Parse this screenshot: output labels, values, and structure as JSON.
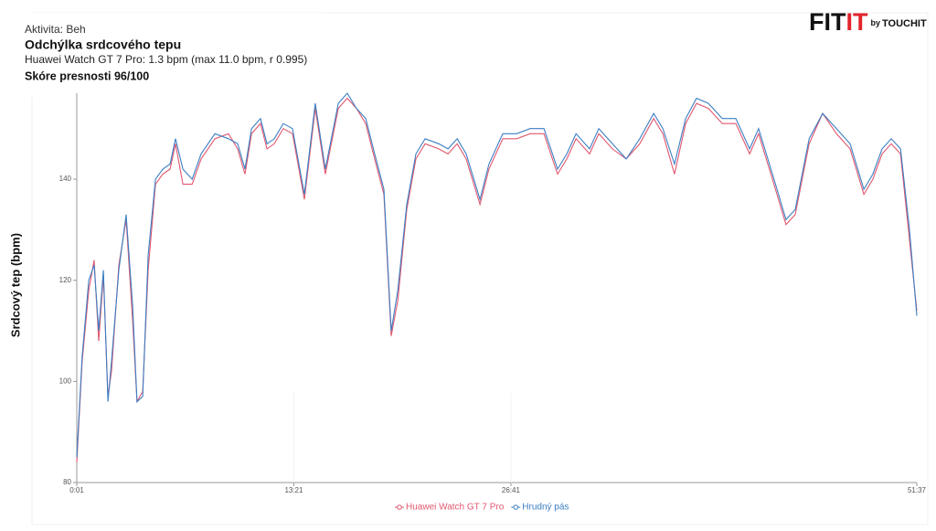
{
  "brand": {
    "fit": "FIT",
    "it": "IT",
    "by": "by",
    "touchit": "TOUCHIT"
  },
  "chart_data": {
    "type": "line",
    "activity": "Aktivita: Beh",
    "title": "Odchýlka srdcového tepu",
    "subtitle": "Huawei Watch GT 7 Pro: 1.3 bpm  (max 11.0 bpm, r 0.995)",
    "score": "Skóre presnosti 96/100",
    "ylabel": "Srdcový tep (bpm)",
    "xlim": [
      1,
      3097
    ],
    "xticks": [
      {
        "value": 1,
        "label": "0:01"
      },
      {
        "value": 801,
        "label": "13:21"
      },
      {
        "value": 1601,
        "label": "26:41"
      },
      {
        "value": 3097,
        "label": "51:37"
      }
    ],
    "ylim": [
      80,
      157
    ],
    "yticks": [
      80,
      100,
      120,
      140
    ],
    "x": [
      1,
      21,
      45,
      65,
      82,
      99,
      116,
      129,
      156,
      183,
      207,
      223,
      244,
      264,
      291,
      318,
      345,
      365,
      392,
      426,
      459,
      510,
      560,
      594,
      621,
      645,
      678,
      702,
      729,
      762,
      796,
      840,
      880,
      917,
      965,
      998,
      1032,
      1066,
      1099,
      1133,
      1160,
      1184,
      1217,
      1251,
      1285,
      1335,
      1369,
      1403,
      1436,
      1487,
      1520,
      1571,
      1622,
      1672,
      1723,
      1773,
      1807,
      1841,
      1891,
      1925,
      1975,
      2026,
      2076,
      2127,
      2161,
      2204,
      2245,
      2285,
      2329,
      2380,
      2430,
      2481,
      2514,
      2565,
      2615,
      2649,
      2700,
      2750,
      2801,
      2851,
      2902,
      2935,
      2969,
      3003,
      3037,
      3070,
      3097
    ],
    "series": [
      {
        "name": "Huawei Watch GT 7 Pro",
        "color": "#e0576f",
        "values": [
          84,
          104,
          118,
          124,
          108,
          121,
          97,
          102,
          123,
          132,
          112,
          96,
          98,
          122,
          139,
          141,
          142,
          147,
          139,
          139,
          144,
          148,
          149,
          146,
          141,
          149,
          151,
          146,
          147,
          150,
          149,
          136,
          154,
          141,
          154,
          156,
          154,
          151,
          144,
          137,
          109,
          116,
          134,
          144,
          147,
          146,
          145,
          147,
          144,
          135,
          142,
          148,
          148,
          149,
          149,
          141,
          144,
          148,
          145,
          149,
          146,
          144,
          147,
          152,
          149,
          141,
          151,
          155,
          154,
          151,
          151,
          145,
          149,
          140,
          131,
          133,
          147,
          153,
          149,
          146,
          137,
          140,
          145,
          147,
          145,
          128,
          114
        ]
      },
      {
        "name": "Hrudný pás",
        "color": "#3b7fc4",
        "values": [
          85,
          105,
          120,
          123,
          110,
          122,
          96,
          104,
          122,
          133,
          115,
          96,
          97,
          125,
          140,
          142,
          143,
          148,
          142,
          140,
          145,
          149,
          148,
          147,
          142,
          150,
          152,
          147,
          148,
          151,
          150,
          137,
          155,
          142,
          155,
          157,
          154,
          152,
          145,
          138,
          110,
          118,
          135,
          145,
          148,
          147,
          146,
          148,
          145,
          136,
          143,
          149,
          149,
          150,
          150,
          142,
          145,
          149,
          146,
          150,
          147,
          144,
          148,
          153,
          150,
          143,
          152,
          156,
          155,
          152,
          152,
          146,
          150,
          141,
          132,
          134,
          148,
          153,
          150,
          147,
          138,
          141,
          146,
          148,
          146,
          130,
          113
        ]
      }
    ]
  }
}
